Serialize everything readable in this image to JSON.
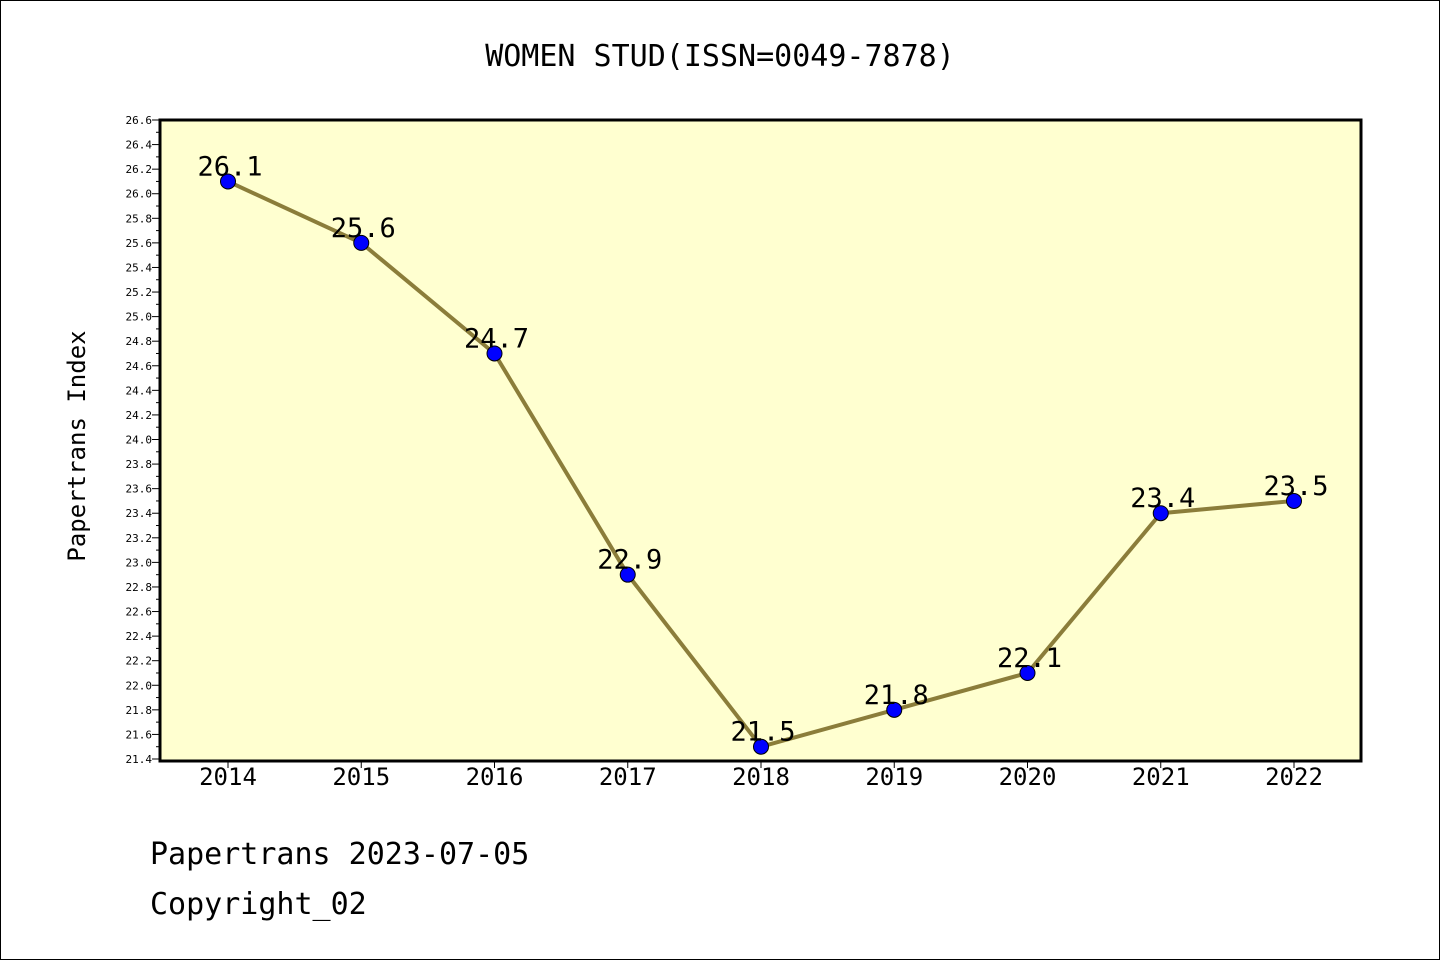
{
  "chart_data": {
    "type": "line",
    "title": "WOMEN STUD(ISSN=0049-7878)",
    "xlabel": "",
    "ylabel": "Papertrans Index",
    "categories": [
      "2014",
      "2015",
      "2016",
      "2017",
      "2018",
      "2019",
      "2020",
      "2021",
      "2022"
    ],
    "series": [
      {
        "values": [
          26.1,
          25.6,
          24.7,
          22.9,
          21.5,
          21.8,
          22.1,
          23.4,
          23.5
        ],
        "data_labels": [
          "26.1",
          "25.6",
          "24.7",
          "22.9",
          "21.5",
          "21.8",
          "22.1",
          "23.4",
          "23.5"
        ]
      }
    ],
    "ylim": [
      21.4,
      26.6
    ],
    "yticks": [
      "21.4",
      "21.6",
      "21.8",
      "22.0",
      "22.2",
      "22.4",
      "22.6",
      "22.8",
      "23.0",
      "23.2",
      "23.4",
      "23.6",
      "23.8",
      "24.0",
      "24.2",
      "24.4",
      "24.6",
      "24.8",
      "25.0",
      "25.2",
      "25.4",
      "25.6",
      "25.8",
      "26.0",
      "26.2",
      "26.4",
      "26.6"
    ],
    "grid": false,
    "legend": "none",
    "colors": {
      "plot_background": "#ffffd0",
      "line": "#8b7d3a",
      "marker": "#0000ff",
      "marker_edge": "#000000"
    }
  },
  "footer": {
    "line1": "Papertrans 2023-07-05",
    "line2": "Copyright_02"
  }
}
